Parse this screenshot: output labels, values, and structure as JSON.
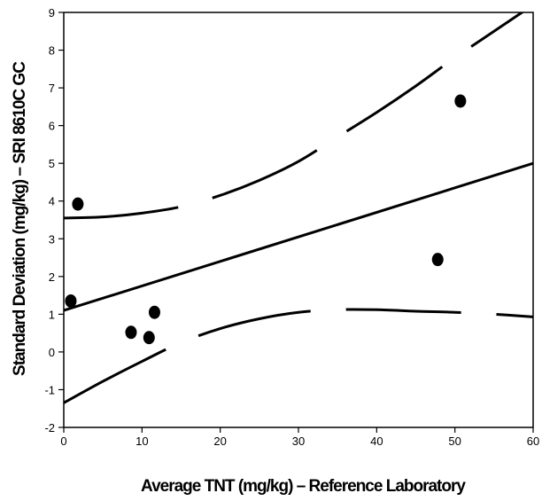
{
  "chart_data": {
    "type": "scatter",
    "title": "",
    "xlabel": "Average TNT (mg/kg) – Reference Laboratory",
    "ylabel": "Standard Deviation (mg/kg) – SRI 8610C GC",
    "xlim": [
      0,
      60
    ],
    "ylim": [
      -2,
      9
    ],
    "x_ticks": [
      0,
      10,
      20,
      30,
      40,
      50,
      60
    ],
    "y_ticks": [
      -2,
      -1,
      0,
      1,
      2,
      3,
      4,
      5,
      6,
      7,
      8,
      9
    ],
    "grid": false,
    "legend": "none",
    "points": [
      {
        "x": 1.8,
        "y": 3.92
      },
      {
        "x": 0.9,
        "y": 1.35
      },
      {
        "x": 8.6,
        "y": 0.52
      },
      {
        "x": 10.9,
        "y": 0.38
      },
      {
        "x": 11.6,
        "y": 1.05
      },
      {
        "x": 47.8,
        "y": 2.45
      },
      {
        "x": 50.7,
        "y": 6.65
      }
    ],
    "regression": {
      "intercept": 1.1,
      "slope": 0.065
    },
    "confidence_upper": [
      [
        0,
        3.55
      ],
      [
        5,
        3.58
      ],
      [
        10,
        3.68
      ],
      [
        15,
        3.85
      ],
      [
        20,
        4.15
      ],
      [
        25,
        4.55
      ],
      [
        30,
        5.05
      ],
      [
        35,
        5.7
      ],
      [
        40,
        6.35
      ],
      [
        45,
        7.05
      ],
      [
        50,
        7.8
      ],
      [
        55,
        8.5
      ],
      [
        60,
        9.2
      ]
    ],
    "confidence_lower": [
      [
        0,
        -1.35
      ],
      [
        5,
        -0.78
      ],
      [
        10,
        -0.25
      ],
      [
        15,
        0.25
      ],
      [
        20,
        0.62
      ],
      [
        25,
        0.88
      ],
      [
        30,
        1.05
      ],
      [
        35,
        1.12
      ],
      [
        40,
        1.12
      ],
      [
        45,
        1.08
      ],
      [
        50,
        1.05
      ],
      [
        55,
        1.0
      ],
      [
        60,
        0.93
      ]
    ]
  }
}
